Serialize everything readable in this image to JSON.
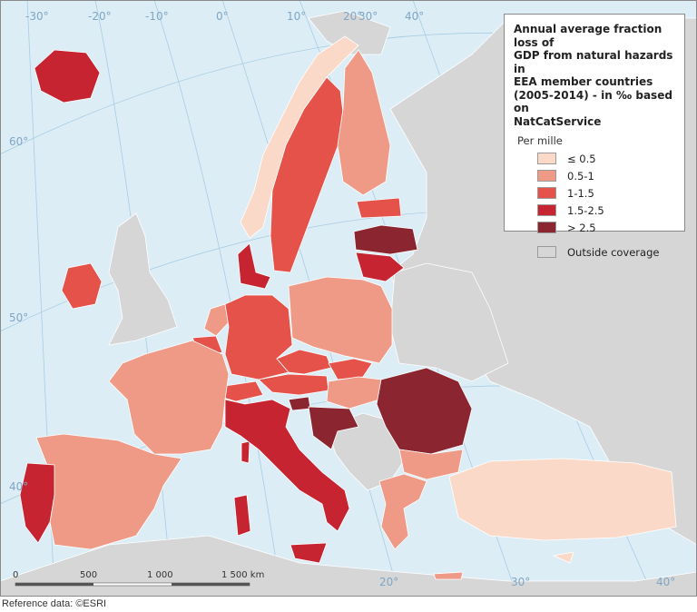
{
  "legend": {
    "title_lines": [
      "Annual average fraction loss of",
      "GDP from natural hazards in",
      "EEA member countries",
      "(2005-2014) - in ‰ based on",
      "NatCatService"
    ],
    "subtitle": "Per mille",
    "classes": [
      {
        "label": "≤ 0.5",
        "color": "#fbd9c8"
      },
      {
        "label": "0.5-1",
        "color": "#ef9a86"
      },
      {
        "label": "1-1.5",
        "color": "#e5524a"
      },
      {
        "label": "1.5-2.5",
        "color": "#c62430"
      },
      {
        "label": "> 2.5",
        "color": "#8b2630"
      }
    ],
    "outside": {
      "label": "Outside coverage",
      "color": "#d6d6d6"
    }
  },
  "colors": {
    "sea": "#dcedf6",
    "outside": "#d6d6d6",
    "graticule": "#a9cde2",
    "border": "#ffffff"
  },
  "graticule_labels": {
    "top": [
      "-30°",
      "-20°",
      "-10°",
      "0°",
      "10°",
      "20°",
      "30°",
      "40°"
    ],
    "left": [
      "60°",
      "50°",
      "40°"
    ],
    "bottom": [
      "20°",
      "30°",
      "40°"
    ]
  },
  "scale_bar": {
    "labels": [
      "0",
      "500",
      "1 000",
      "1 500 km"
    ]
  },
  "reference_note": "Reference data: ©ESRI"
}
